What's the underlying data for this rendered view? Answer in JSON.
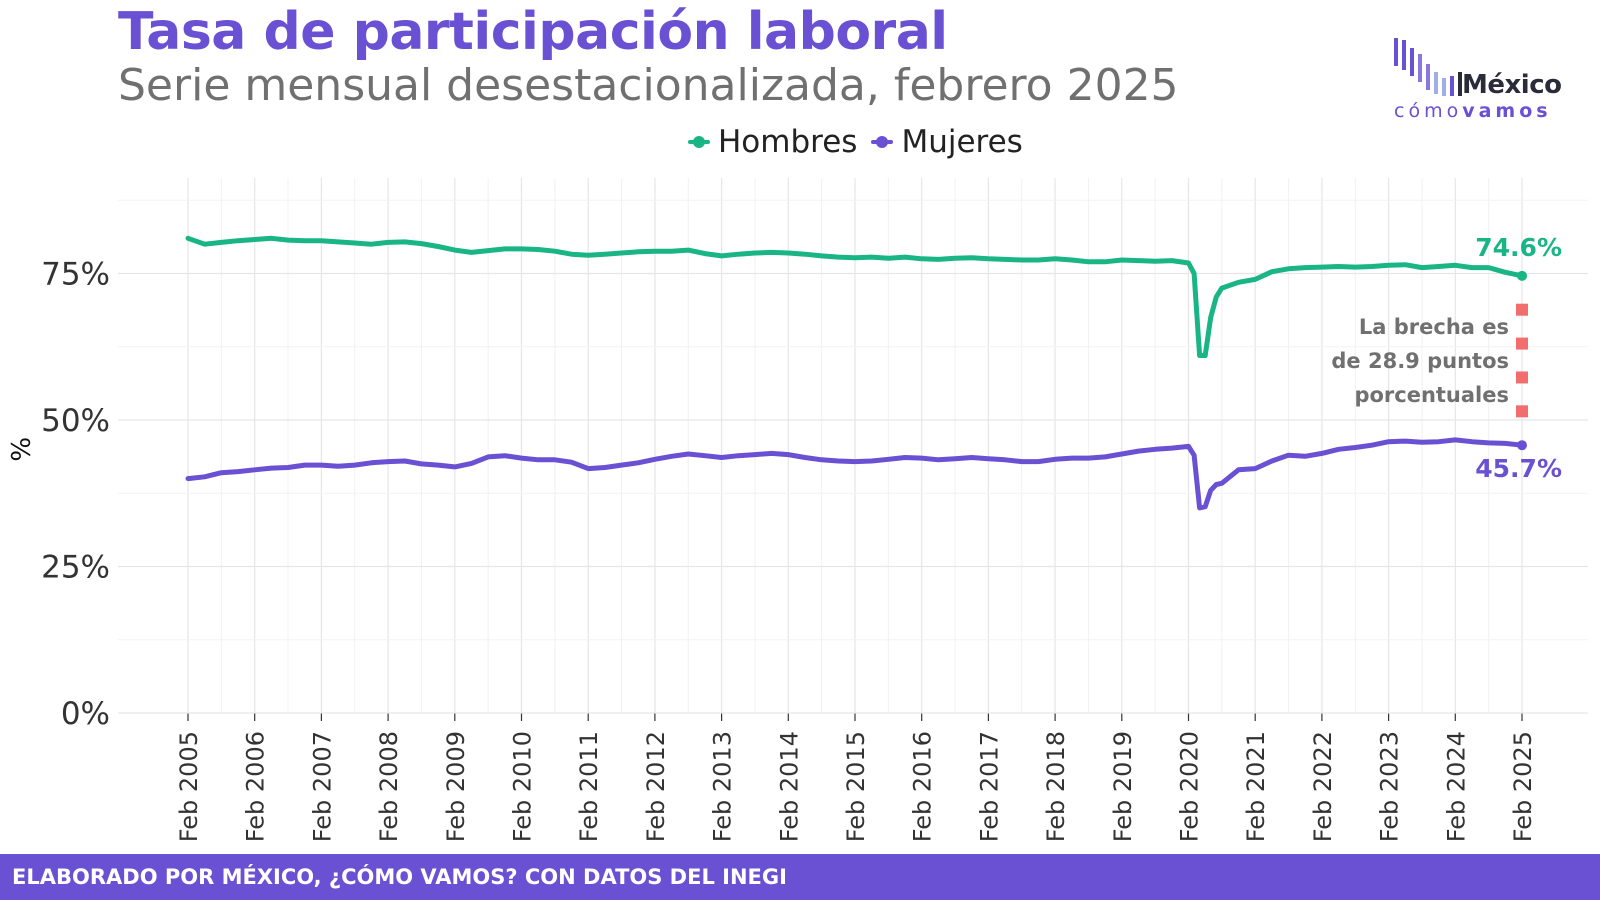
{
  "header": {
    "title": "Tasa de participación laboral",
    "subtitle": "Serie mensual desestacionalizada, febrero 2025"
  },
  "logo": {
    "top": "México",
    "bottom_light": "cómo",
    "bottom_bold": "vamos"
  },
  "footer": {
    "text": "ELABORADO POR MÉXICO, ¿CÓMO VAMOS? CON DATOS DEL INEGI"
  },
  "colors": {
    "hombres": "#1ab585",
    "mujeres": "#6a50d3",
    "gap_marker": "#f26d6d",
    "footer_bg": "#6a50d3"
  },
  "chart_data": {
    "type": "line",
    "ylabel": "%",
    "ylim": [
      0,
      90
    ],
    "yticks": [
      0,
      25,
      50,
      75
    ],
    "yticklabels": [
      "0%",
      "25%",
      "50%",
      "75%"
    ],
    "xticks": [
      "Feb 2005",
      "Feb 2006",
      "Feb 2007",
      "Feb 2008",
      "Feb 2009",
      "Feb 2010",
      "Feb 2011",
      "Feb 2012",
      "Feb 2013",
      "Feb 2014",
      "Feb 2015",
      "Feb 2016",
      "Feb 2017",
      "Feb 2018",
      "Feb 2019",
      "Feb 2020",
      "Feb 2021",
      "Feb 2022",
      "Feb 2023",
      "Feb 2024",
      "Feb 2025"
    ],
    "x_start": "Feb 2005",
    "x_end": "Feb 2025",
    "grid": true,
    "legend_position": "top",
    "series": [
      {
        "name": "Hombres",
        "color": "#1ab585",
        "end_label": "74.6%",
        "points": [
          [
            "2005-02",
            81.0
          ],
          [
            "2005-05",
            80.0
          ],
          [
            "2005-08",
            80.3
          ],
          [
            "2005-11",
            80.6
          ],
          [
            "2006-02",
            80.8
          ],
          [
            "2006-05",
            81.0
          ],
          [
            "2006-08",
            80.7
          ],
          [
            "2006-11",
            80.6
          ],
          [
            "2007-02",
            80.6
          ],
          [
            "2007-05",
            80.4
          ],
          [
            "2007-08",
            80.2
          ],
          [
            "2007-11",
            80.0
          ],
          [
            "2008-02",
            80.3
          ],
          [
            "2008-05",
            80.4
          ],
          [
            "2008-08",
            80.1
          ],
          [
            "2008-11",
            79.6
          ],
          [
            "2009-02",
            79.0
          ],
          [
            "2009-05",
            78.6
          ],
          [
            "2009-08",
            78.9
          ],
          [
            "2009-11",
            79.2
          ],
          [
            "2010-02",
            79.2
          ],
          [
            "2010-05",
            79.1
          ],
          [
            "2010-08",
            78.8
          ],
          [
            "2010-11",
            78.3
          ],
          [
            "2011-02",
            78.1
          ],
          [
            "2011-05",
            78.3
          ],
          [
            "2011-08",
            78.5
          ],
          [
            "2011-11",
            78.7
          ],
          [
            "2012-02",
            78.8
          ],
          [
            "2012-05",
            78.8
          ],
          [
            "2012-08",
            79.0
          ],
          [
            "2012-11",
            78.4
          ],
          [
            "2013-02",
            78.0
          ],
          [
            "2013-05",
            78.3
          ],
          [
            "2013-08",
            78.5
          ],
          [
            "2013-11",
            78.6
          ],
          [
            "2014-02",
            78.5
          ],
          [
            "2014-05",
            78.3
          ],
          [
            "2014-08",
            78.0
          ],
          [
            "2014-11",
            77.8
          ],
          [
            "2015-02",
            77.7
          ],
          [
            "2015-05",
            77.8
          ],
          [
            "2015-08",
            77.6
          ],
          [
            "2015-11",
            77.8
          ],
          [
            "2016-02",
            77.5
          ],
          [
            "2016-05",
            77.4
          ],
          [
            "2016-08",
            77.6
          ],
          [
            "2016-11",
            77.7
          ],
          [
            "2017-02",
            77.5
          ],
          [
            "2017-05",
            77.4
          ],
          [
            "2017-08",
            77.3
          ],
          [
            "2017-11",
            77.3
          ],
          [
            "2018-02",
            77.5
          ],
          [
            "2018-05",
            77.3
          ],
          [
            "2018-08",
            77.0
          ],
          [
            "2018-11",
            77.0
          ],
          [
            "2019-02",
            77.3
          ],
          [
            "2019-05",
            77.2
          ],
          [
            "2019-08",
            77.1
          ],
          [
            "2019-11",
            77.2
          ],
          [
            "2020-02",
            76.8
          ],
          [
            "2020-03",
            75.0
          ],
          [
            "2020-04",
            61.0
          ],
          [
            "2020-05",
            61.0
          ],
          [
            "2020-06",
            67.5
          ],
          [
            "2020-07",
            71.0
          ],
          [
            "2020-08",
            72.5
          ],
          [
            "2020-11",
            73.5
          ],
          [
            "2021-02",
            74.0
          ],
          [
            "2021-05",
            75.3
          ],
          [
            "2021-08",
            75.8
          ],
          [
            "2021-11",
            76.0
          ],
          [
            "2022-02",
            76.1
          ],
          [
            "2022-05",
            76.2
          ],
          [
            "2022-08",
            76.1
          ],
          [
            "2022-11",
            76.2
          ],
          [
            "2023-02",
            76.4
          ],
          [
            "2023-05",
            76.5
          ],
          [
            "2023-08",
            76.0
          ],
          [
            "2023-11",
            76.2
          ],
          [
            "2024-02",
            76.4
          ],
          [
            "2024-05",
            76.0
          ],
          [
            "2024-08",
            76.0
          ],
          [
            "2024-11",
            75.2
          ],
          [
            "2025-02",
            74.6
          ]
        ]
      },
      {
        "name": "Mujeres",
        "color": "#6a50d3",
        "end_label": "45.7%",
        "points": [
          [
            "2005-02",
            40.0
          ],
          [
            "2005-05",
            40.3
          ],
          [
            "2005-08",
            41.0
          ],
          [
            "2005-11",
            41.2
          ],
          [
            "2006-02",
            41.5
          ],
          [
            "2006-05",
            41.8
          ],
          [
            "2006-08",
            41.9
          ],
          [
            "2006-11",
            42.3
          ],
          [
            "2007-02",
            42.3
          ],
          [
            "2007-05",
            42.1
          ],
          [
            "2007-08",
            42.3
          ],
          [
            "2007-11",
            42.7
          ],
          [
            "2008-02",
            42.9
          ],
          [
            "2008-05",
            43.0
          ],
          [
            "2008-08",
            42.5
          ],
          [
            "2008-11",
            42.3
          ],
          [
            "2009-02",
            42.0
          ],
          [
            "2009-05",
            42.6
          ],
          [
            "2009-08",
            43.7
          ],
          [
            "2009-11",
            43.9
          ],
          [
            "2010-02",
            43.5
          ],
          [
            "2010-05",
            43.2
          ],
          [
            "2010-08",
            43.2
          ],
          [
            "2010-11",
            42.8
          ],
          [
            "2011-02",
            41.7
          ],
          [
            "2011-05",
            41.9
          ],
          [
            "2011-08",
            42.3
          ],
          [
            "2011-11",
            42.7
          ],
          [
            "2012-02",
            43.3
          ],
          [
            "2012-05",
            43.8
          ],
          [
            "2012-08",
            44.2
          ],
          [
            "2012-11",
            43.9
          ],
          [
            "2013-02",
            43.6
          ],
          [
            "2013-05",
            43.9
          ],
          [
            "2013-08",
            44.1
          ],
          [
            "2013-11",
            44.3
          ],
          [
            "2014-02",
            44.1
          ],
          [
            "2014-05",
            43.6
          ],
          [
            "2014-08",
            43.2
          ],
          [
            "2014-11",
            43.0
          ],
          [
            "2015-02",
            42.9
          ],
          [
            "2015-05",
            43.0
          ],
          [
            "2015-08",
            43.3
          ],
          [
            "2015-11",
            43.6
          ],
          [
            "2016-02",
            43.5
          ],
          [
            "2016-05",
            43.2
          ],
          [
            "2016-08",
            43.4
          ],
          [
            "2016-11",
            43.6
          ],
          [
            "2017-02",
            43.4
          ],
          [
            "2017-05",
            43.2
          ],
          [
            "2017-08",
            42.9
          ],
          [
            "2017-11",
            42.9
          ],
          [
            "2018-02",
            43.3
          ],
          [
            "2018-05",
            43.5
          ],
          [
            "2018-08",
            43.5
          ],
          [
            "2018-11",
            43.7
          ],
          [
            "2019-02",
            44.2
          ],
          [
            "2019-05",
            44.7
          ],
          [
            "2019-08",
            45.0
          ],
          [
            "2019-11",
            45.2
          ],
          [
            "2020-02",
            45.5
          ],
          [
            "2020-03",
            44.0
          ],
          [
            "2020-04",
            35.0
          ],
          [
            "2020-05",
            35.2
          ],
          [
            "2020-06",
            38.0
          ],
          [
            "2020-07",
            39.0
          ],
          [
            "2020-08",
            39.2
          ],
          [
            "2020-11",
            41.5
          ],
          [
            "2021-02",
            41.7
          ],
          [
            "2021-05",
            43.0
          ],
          [
            "2021-08",
            44.0
          ],
          [
            "2021-11",
            43.8
          ],
          [
            "2022-02",
            44.3
          ],
          [
            "2022-05",
            45.0
          ],
          [
            "2022-08",
            45.3
          ],
          [
            "2022-11",
            45.7
          ],
          [
            "2023-02",
            46.3
          ],
          [
            "2023-05",
            46.4
          ],
          [
            "2023-08",
            46.2
          ],
          [
            "2023-11",
            46.3
          ],
          [
            "2024-02",
            46.6
          ],
          [
            "2024-05",
            46.3
          ],
          [
            "2024-08",
            46.1
          ],
          [
            "2024-11",
            46.0
          ],
          [
            "2025-02",
            45.7
          ]
        ]
      }
    ],
    "annotation": {
      "lines": [
        "La brecha es",
        "de 28.9 puntos",
        "porcentuales"
      ],
      "color": "#707070"
    }
  }
}
